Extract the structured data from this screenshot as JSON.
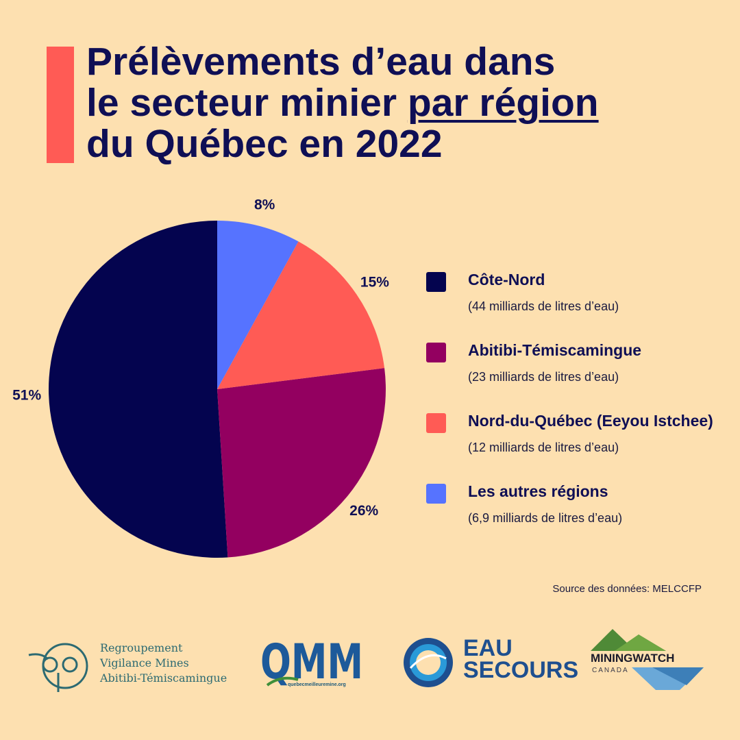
{
  "title": {
    "line1": "Prélèvements d’eau dans",
    "line2_pre": "le secteur minier ",
    "line2_underlined": "par région",
    "line3": "du Québec en 2022"
  },
  "chart_data": {
    "type": "pie",
    "slices": [
      {
        "name": "Côte-Nord",
        "value": 51,
        "label": "51%",
        "color": "#04044f"
      },
      {
        "name": "Abitibi-Témiscamingue",
        "value": 26,
        "label": "26%",
        "color": "#930060"
      },
      {
        "name": "Nord-du-Québec (Eeyou Istchee)",
        "value": 15,
        "label": "15%",
        "color": "#ff5b55"
      },
      {
        "name": "Les autres régions",
        "value": 8,
        "label": "8%",
        "color": "#5673ff"
      }
    ],
    "legend_position": "right"
  },
  "legend": [
    {
      "name": "Côte-Nord",
      "detail": "(44 milliards de litres d’eau)",
      "color": "#04044f"
    },
    {
      "name": "Abitibi-Témiscamingue",
      "detail": "(23 milliards de litres d’eau)",
      "color": "#930060"
    },
    {
      "name": "Nord-du-Québec (Eeyou Istchee)",
      "detail": "(12 milliards de litres d’eau)",
      "color": "#ff5b55"
    },
    {
      "name": "Les autres régions",
      "detail": "(6,9 milliards de litres d’eau)",
      "color": "#5673ff"
    }
  ],
  "source": "Source des données: MELCCFP",
  "logos": {
    "rvm": {
      "line1": "Regroupement",
      "line2": "Vigilance Mines",
      "line3": "Abitibi-Témiscamingue"
    },
    "qmm": {
      "text": "QMM",
      "sub": "quebecmeilleuremine.org"
    },
    "eau": {
      "line1": "EAU",
      "line2": "SECOURS"
    },
    "mw": {
      "text": "MININGWATCH",
      "sub": "CANADA"
    }
  }
}
